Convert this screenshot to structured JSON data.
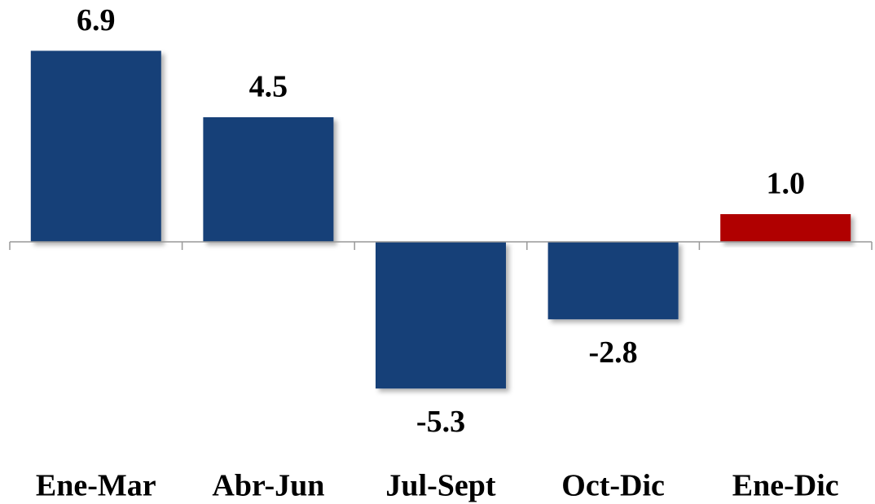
{
  "chart_data": {
    "type": "bar",
    "categories": [
      "Ene-Mar",
      "Abr-Jun",
      "Jul-Sept",
      "Oct-Dic",
      "Ene-Dic"
    ],
    "values": [
      6.9,
      4.5,
      -5.3,
      -2.8,
      1.0
    ],
    "value_labels": [
      "6.9",
      "4.5",
      "-5.3",
      "-2.8",
      "1.0"
    ],
    "colors": [
      "#163f78",
      "#163f78",
      "#163f78",
      "#163f78",
      "#b00000"
    ],
    "ylim": [
      -7,
      8.5
    ]
  }
}
